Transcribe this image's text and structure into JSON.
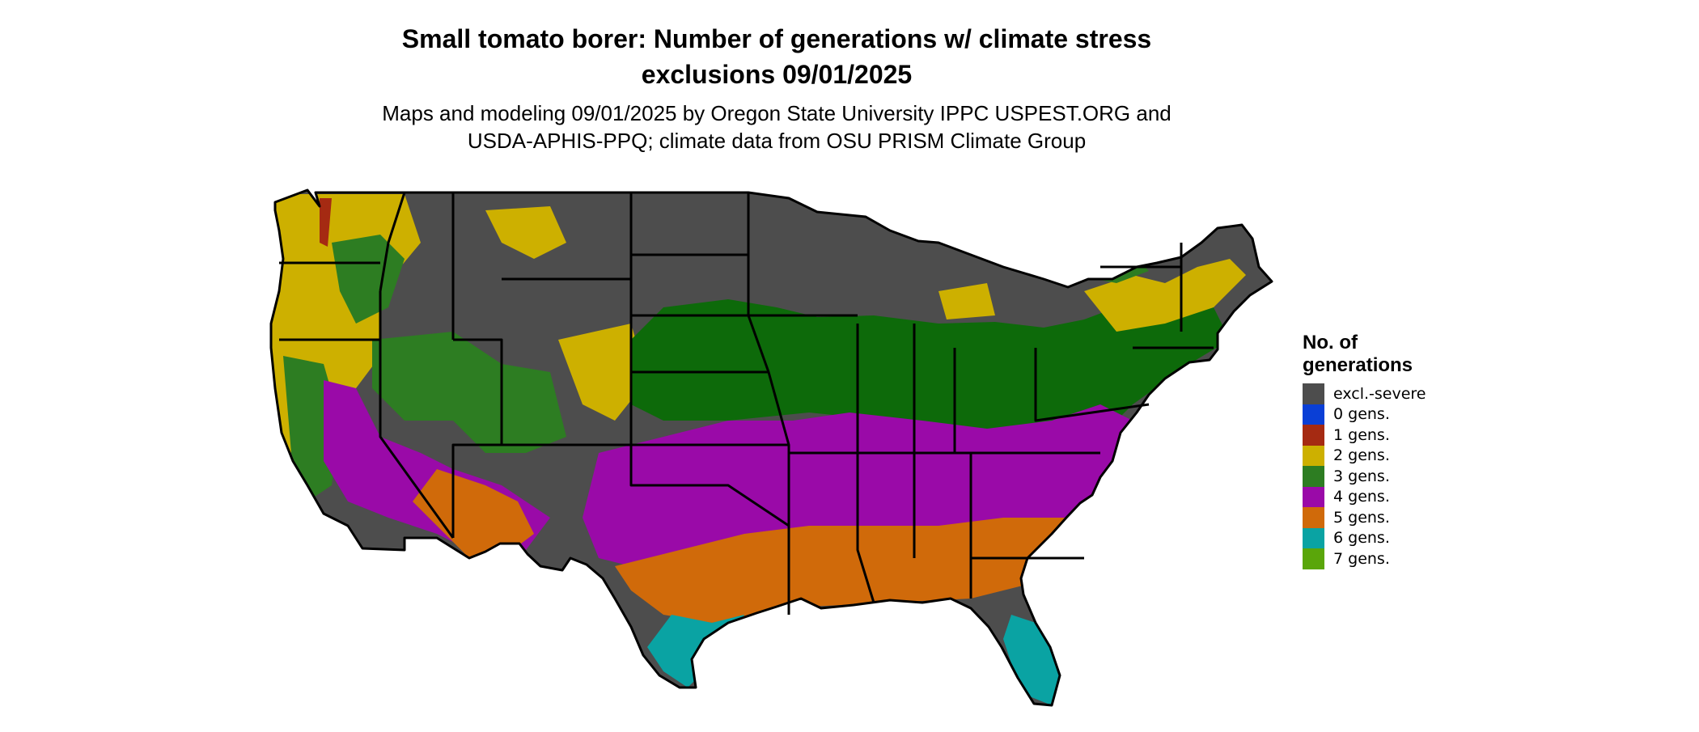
{
  "title": {
    "line1": "Small tomato borer: Number of generations w/ climate stress",
    "line2": "exclusions 09/01/2025"
  },
  "subtitle": {
    "line1": "Maps and modeling 09/01/2025 by Oregon State University IPPC USPEST.ORG and",
    "line2": "USDA-APHIS-PPQ; climate data from OSU PRISM Climate Group"
  },
  "legend": {
    "title_line1": "No. of",
    "title_line2": "generations",
    "items": [
      {
        "label": "excl.-severe",
        "color": "#4d4d4d"
      },
      {
        "label": "0 gens.",
        "color": "#0a3fd6"
      },
      {
        "label": "1 gens.",
        "color": "#a52a12"
      },
      {
        "label": "2 gens.",
        "color": "#cdb000"
      },
      {
        "label": "3 gens.",
        "color": "#2d7d22"
      },
      {
        "label": "4 gens.",
        "color": "#9a0aa8"
      },
      {
        "label": "5 gens.",
        "color": "#d06a0a"
      },
      {
        "label": "6 gens.",
        "color": "#0aa3a3"
      },
      {
        "label": "7 gens.",
        "color": "#5aa60a"
      }
    ]
  },
  "map": {
    "region": "Contiguous United States",
    "colors": {
      "severe": "#4d4d4d",
      "g1": "#a52a12",
      "g2": "#cdb000",
      "g3": "#2d7d22",
      "g3dark": "#0d6a0a",
      "g4": "#9a0aa8",
      "g5": "#d06a0a",
      "g6": "#0aa3a3",
      "g7": "#5aa60a",
      "border": "#000000"
    }
  }
}
